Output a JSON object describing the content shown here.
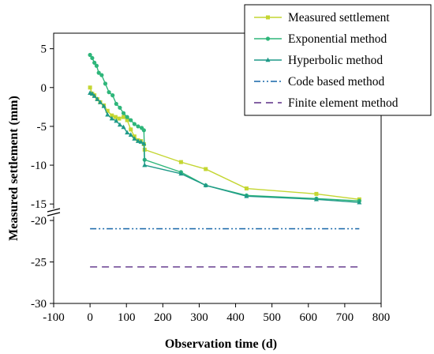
{
  "chart_data": {
    "type": "line",
    "xlabel": "Observation time (d)",
    "ylabel": "Measured settlement (mm)",
    "xlim": [
      -100,
      800
    ],
    "x_ticks": [
      -100,
      0,
      100,
      200,
      300,
      400,
      500,
      600,
      700,
      800
    ],
    "y_break": {
      "lower_segment": [
        -30,
        -20
      ],
      "upper_segment": [
        -16,
        7
      ]
    },
    "y_ticks": [
      5,
      0,
      -5,
      -10,
      -15,
      -20,
      -25,
      -30
    ],
    "legend_position": "top-right",
    "series": [
      {
        "name": "Measured settlement",
        "color": "#c4d632",
        "marker": "square",
        "x": [
          0,
          6,
          12,
          20,
          28,
          38,
          48,
          60,
          70,
          80,
          92,
          102,
          112,
          122,
          132,
          140,
          148,
          150,
          250,
          318,
          430,
          622,
          740
        ],
        "y": [
          0,
          -0.8,
          -1.0,
          -1.5,
          -1.9,
          -2.3,
          -3.0,
          -3.6,
          -3.8,
          -4.0,
          -3.8,
          -4.2,
          -5.4,
          -6.3,
          -6.8,
          -6.9,
          -7.3,
          -8.0,
          -9.6,
          -10.5,
          -13.0,
          -13.7,
          -14.4
        ]
      },
      {
        "name": "Exponential method",
        "color": "#2eb67a",
        "marker": "circle",
        "x": [
          0,
          6,
          12,
          18,
          24,
          32,
          42,
          52,
          62,
          72,
          82,
          92,
          102,
          112,
          122,
          132,
          142,
          148,
          150,
          250,
          318,
          430,
          622,
          740
        ],
        "y": [
          4.2,
          3.8,
          3.2,
          2.8,
          1.9,
          1.6,
          0.5,
          -0.6,
          -1.0,
          -2.1,
          -2.6,
          -3.3,
          -3.8,
          -4.2,
          -4.7,
          -5.0,
          -5.2,
          -5.5,
          -9.3,
          -10.9,
          -12.6,
          -13.9,
          -14.3,
          -14.6
        ]
      },
      {
        "name": "Hyperbolic method",
        "color": "#1f9a88",
        "marker": "triangle",
        "x": [
          0,
          6,
          12,
          20,
          28,
          38,
          48,
          60,
          72,
          82,
          92,
          102,
          112,
          122,
          132,
          140,
          148,
          150,
          250,
          318,
          430,
          622,
          740
        ],
        "y": [
          -0.7,
          -0.8,
          -1.1,
          -1.5,
          -1.9,
          -2.4,
          -3.5,
          -4.0,
          -4.3,
          -4.8,
          -5.1,
          -5.8,
          -6.1,
          -6.6,
          -6.9,
          -7.0,
          -7.2,
          -10.0,
          -11.1,
          -12.6,
          -14.0,
          -14.4,
          -14.8
        ]
      },
      {
        "name": "Code based method",
        "color": "#1565a8",
        "line_style": "dash-dot-dot",
        "x": [
          0,
          740
        ],
        "y": [
          -21.0,
          -21.0
        ]
      },
      {
        "name": "Finite element method",
        "color": "#5b2f86",
        "line_style": "dashed",
        "x": [
          0,
          740
        ],
        "y": [
          -25.6,
          -25.6
        ]
      }
    ]
  }
}
